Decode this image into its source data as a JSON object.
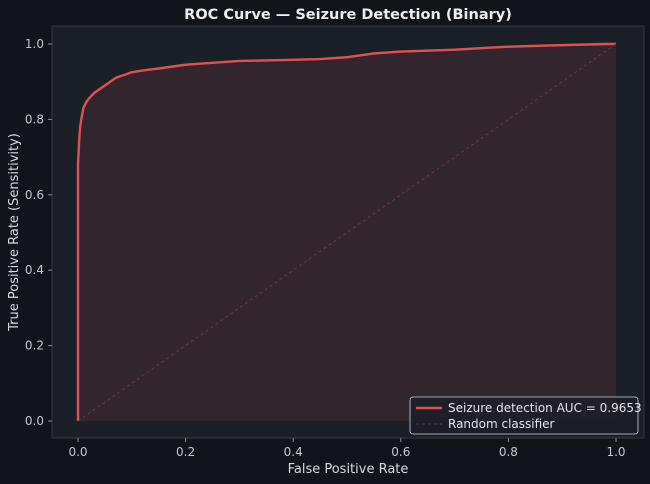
{
  "chart_data": {
    "type": "line",
    "title": "ROC Curve — Seizure Detection (Binary)",
    "xlabel": "False Positive Rate",
    "ylabel": "True Positive Rate (Sensitivity)",
    "xlim": [
      0,
      1
    ],
    "ylim": [
      0,
      1
    ],
    "xticks": [
      0.0,
      0.2,
      0.4,
      0.6,
      0.8,
      1.0
    ],
    "yticks": [
      0.0,
      0.2,
      0.4,
      0.6,
      0.8,
      1.0
    ],
    "xtick_labels": [
      "0.0",
      "0.2",
      "0.4",
      "0.6",
      "0.8",
      "1.0"
    ],
    "ytick_labels": [
      "0.0",
      "0.2",
      "0.4",
      "0.6",
      "0.8",
      "1.0"
    ],
    "grid": false,
    "legend_position": "bottom-right",
    "series": [
      {
        "name": "Seizure detection AUC = 0.9653",
        "color": "#e05252",
        "style": "solid",
        "fill_under": true,
        "x": [
          0.0,
          0.0,
          0.002,
          0.004,
          0.006,
          0.01,
          0.015,
          0.02,
          0.03,
          0.04,
          0.05,
          0.06,
          0.07,
          0.08,
          0.1,
          0.12,
          0.15,
          0.2,
          0.25,
          0.3,
          0.4,
          0.45,
          0.5,
          0.55,
          0.6,
          0.7,
          0.76,
          0.8,
          0.9,
          0.98,
          1.0
        ],
        "y": [
          0.0,
          0.68,
          0.74,
          0.78,
          0.8,
          0.83,
          0.845,
          0.855,
          0.87,
          0.88,
          0.89,
          0.9,
          0.91,
          0.915,
          0.925,
          0.93,
          0.935,
          0.945,
          0.95,
          0.955,
          0.958,
          0.96,
          0.965,
          0.975,
          0.98,
          0.985,
          0.99,
          0.993,
          0.997,
          1.0,
          1.0
        ]
      },
      {
        "name": "Random classifier",
        "color": "#6a3a3f",
        "style": "dashed",
        "fill_under": false,
        "x": [
          0,
          1
        ],
        "y": [
          0,
          1
        ]
      }
    ]
  }
}
